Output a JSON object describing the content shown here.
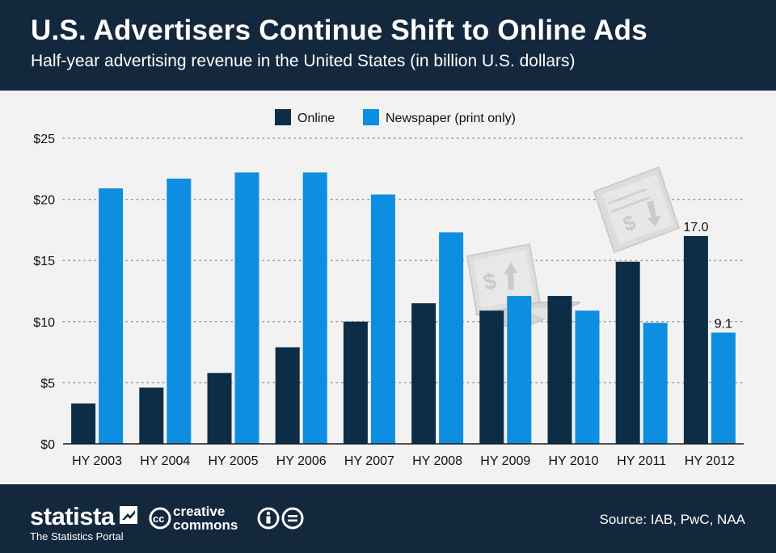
{
  "header": {
    "title": "U.S. Advertisers Continue Shift to Online Ads",
    "subtitle": "Half-year advertising revenue in the United States (in billion U.S. dollars)"
  },
  "footer": {
    "brand": "statista",
    "tagline": "The Statistics Portal",
    "license_line1": "creative",
    "license_line2": "commons",
    "source": "Source: IAB, PwC, NAA"
  },
  "colors": {
    "online": "#0d2d47",
    "newspaper": "#0d8ee0",
    "header_bg": "#14283d",
    "chart_bg": "#f2f2f2"
  },
  "icons": [
    "laptop-dollar-up-icon",
    "newspaper-dollar-down-icon",
    "statista-logo-icon",
    "creative-commons-icon",
    "attribution-icon",
    "no-derivatives-icon"
  ],
  "chart_data": {
    "type": "bar",
    "categories": [
      "HY 2003",
      "HY 2004",
      "HY 2005",
      "HY 2006",
      "HY 2007",
      "HY 2008",
      "HY 2009",
      "HY 2010",
      "HY 2011",
      "HY 2012"
    ],
    "series": [
      {
        "name": "Online",
        "values": [
          3.3,
          4.6,
          5.8,
          7.9,
          10.0,
          11.5,
          10.9,
          12.1,
          14.9,
          17.0
        ]
      },
      {
        "name": "Newspaper (print only)",
        "values": [
          20.9,
          21.7,
          22.2,
          22.2,
          20.4,
          17.3,
          12.1,
          10.9,
          9.9,
          9.1
        ]
      }
    ],
    "data_labels": [
      {
        "series": 0,
        "index": 9,
        "text": "17.0"
      },
      {
        "series": 1,
        "index": 9,
        "text": "9.1"
      }
    ],
    "y_ticks": [
      {
        "value": 0,
        "label": "$0"
      },
      {
        "value": 5,
        "label": "$5"
      },
      {
        "value": 10,
        "label": "$10"
      },
      {
        "value": 15,
        "label": "$15"
      },
      {
        "value": 20,
        "label": "$20"
      },
      {
        "value": 25,
        "label": "$25"
      }
    ],
    "ylim": [
      0,
      25
    ],
    "xlabel": "",
    "ylabel": "",
    "grid": true,
    "legend": "top-center"
  }
}
